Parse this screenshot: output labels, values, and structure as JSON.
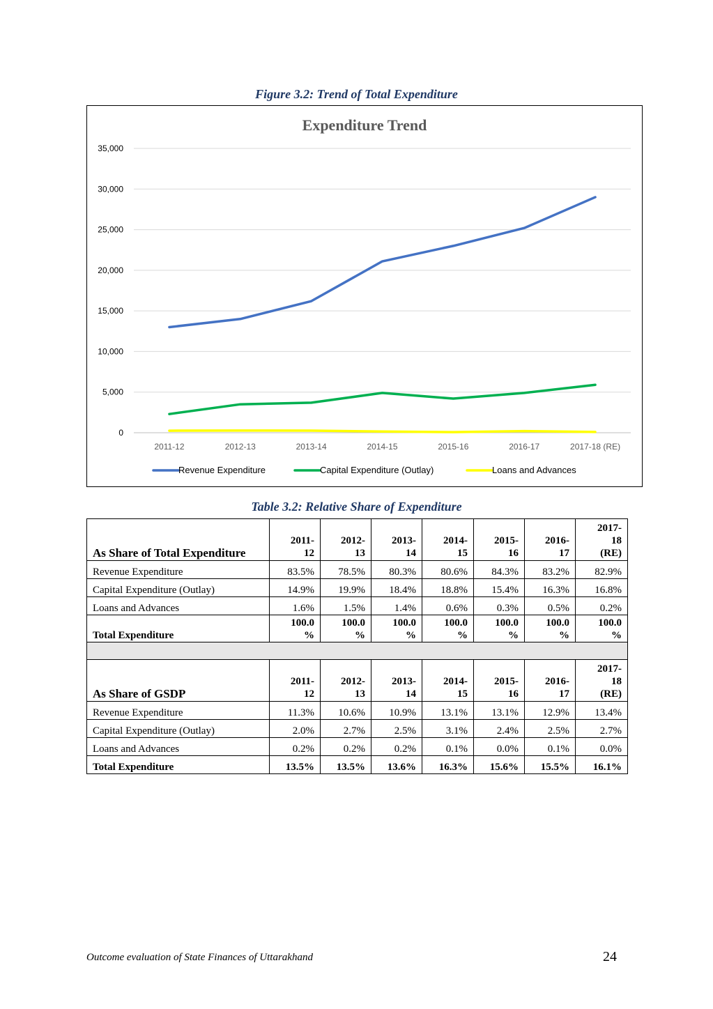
{
  "figure_caption": "Figure 3.2: Trend of Total Expenditure",
  "chart_data": {
    "type": "line",
    "title": "Expenditure Trend",
    "categories": [
      "2011-12",
      "2012-13",
      "2013-14",
      "2014-15",
      "2015-16",
      "2016-17",
      "2017-18  (RE)"
    ],
    "ylim": [
      0,
      35000
    ],
    "yticks": [
      0,
      5000,
      10000,
      15000,
      20000,
      25000,
      30000,
      35000
    ],
    "ytick_labels": [
      "0",
      "5,000",
      "10,000",
      "15,000",
      "20,000",
      "25,000",
      "30,000",
      "35,000"
    ],
    "grid": true,
    "legend_position": "bottom",
    "series": [
      {
        "name": "Revenue Expenditure",
        "color": "#4472c4",
        "values": [
          13000,
          14000,
          16200,
          21100,
          23000,
          25200,
          29000
        ]
      },
      {
        "name": "Capital Expenditure (Outlay)",
        "color": "#00b050",
        "values": [
          2300,
          3500,
          3700,
          4900,
          4200,
          4900,
          5900
        ]
      },
      {
        "name": "Loans and Advances",
        "color": "#ffff00",
        "values": [
          250,
          270,
          260,
          150,
          80,
          200,
          100
        ]
      }
    ]
  },
  "table_caption": "Table 3.2: Relative Share of Expenditure",
  "table": {
    "section1": {
      "header_label": "As Share of Total Expenditure",
      "header_years": [
        "2011-\n12",
        "2012-\n13",
        "2013-\n14",
        "2014-\n15",
        "2015-\n16",
        "2016-\n17",
        "2017-\n18\n(RE)"
      ],
      "rows": [
        {
          "label": "Revenue Expenditure",
          "values": [
            "83.5%",
            "78.5%",
            "80.3%",
            "80.6%",
            "84.3%",
            "83.2%",
            "82.9%"
          ]
        },
        {
          "label": "Capital Expenditure (Outlay)",
          "values": [
            "14.9%",
            "19.9%",
            "18.4%",
            "18.8%",
            "15.4%",
            "16.3%",
            "16.8%"
          ]
        },
        {
          "label": "Loans and Advances",
          "values": [
            "1.6%",
            "1.5%",
            "1.4%",
            "0.6%",
            "0.3%",
            "0.5%",
            "0.2%"
          ]
        }
      ],
      "total": {
        "label": "Total Expenditure",
        "values": [
          "100.0\n%",
          "100.0\n%",
          "100.0\n%",
          "100.0\n%",
          "100.0\n%",
          "100.0\n%",
          "100.0\n%"
        ]
      }
    },
    "section2": {
      "header_label": "As Share of GSDP",
      "header_years": [
        "2011-\n12",
        "2012-\n13",
        "2013-\n14",
        "2014-\n15",
        "2015-\n16",
        "2016-\n17",
        "2017-\n18\n(RE)"
      ],
      "rows": [
        {
          "label": "Revenue Expenditure",
          "values": [
            "11.3%",
            "10.6%",
            "10.9%",
            "13.1%",
            "13.1%",
            "12.9%",
            "13.4%"
          ]
        },
        {
          "label": "Capital Expenditure (Outlay)",
          "values": [
            "2.0%",
            "2.7%",
            "2.5%",
            "3.1%",
            "2.4%",
            "2.5%",
            "2.7%"
          ]
        },
        {
          "label": "Loans and Advances",
          "values": [
            "0.2%",
            "0.2%",
            "0.2%",
            "0.1%",
            "0.0%",
            "0.1%",
            "0.0%"
          ]
        }
      ],
      "total": {
        "label": "Total Expenditure",
        "values": [
          "13.5%",
          "13.5%",
          "13.6%",
          "16.3%",
          "15.6%",
          "15.5%",
          "16.1%"
        ]
      }
    }
  },
  "footer": {
    "text": "Outcome evaluation of State Finances of Uttarakhand",
    "page_number": "24"
  }
}
